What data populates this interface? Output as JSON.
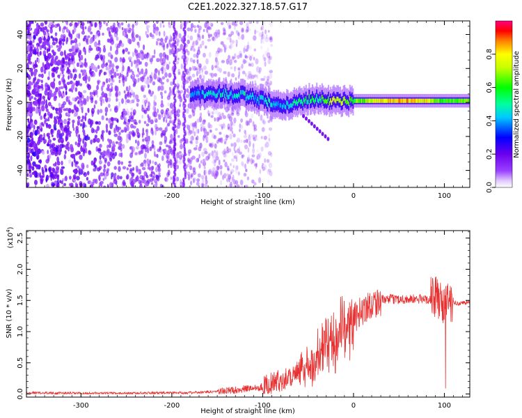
{
  "title": "C2E1.2022.327.18.57.G17",
  "chart_data": [
    {
      "type": "heatmap",
      "xlabel": "Height of straight line (km)",
      "ylabel": "Frequency (Hz)",
      "xlim": [
        -360,
        128
      ],
      "ylim": [
        -50,
        48
      ],
      "xticks": [
        -300,
        -200,
        -100,
        0,
        100
      ],
      "yticks": [
        -40,
        -20,
        0,
        20,
        40
      ],
      "colorbar": {
        "label": "Normalized spectral amplitude",
        "range": [
          0.0,
          1.0
        ],
        "ticks": [
          0.0,
          0.2,
          0.4,
          0.6,
          0.8
        ],
        "tick_labels": [
          "0.0",
          "0.2",
          "0.4",
          "0.6",
          "0.8"
        ],
        "colormap": "rainbow-white"
      },
      "features": {
        "noise_region_x": [
          -360,
          -130
        ],
        "signal_track": [
          {
            "x": -180,
            "y": 5,
            "v": 0.35
          },
          {
            "x": -160,
            "y": 5,
            "v": 0.45
          },
          {
            "x": -140,
            "y": 5,
            "v": 0.45
          },
          {
            "x": -120,
            "y": 4,
            "v": 0.45
          },
          {
            "x": -100,
            "y": 1,
            "v": 0.45
          },
          {
            "x": -80,
            "y": -3,
            "v": 0.4
          },
          {
            "x": -60,
            "y": 1,
            "v": 0.5
          },
          {
            "x": -40,
            "y": 2,
            "v": 0.55
          },
          {
            "x": -20,
            "y": 1,
            "v": 0.75
          },
          {
            "x": 0,
            "y": 1,
            "v": 0.6
          },
          {
            "x": 20,
            "y": 1,
            "v": 0.75
          },
          {
            "x": 40,
            "y": 1,
            "v": 0.8
          },
          {
            "x": 60,
            "y": 1,
            "v": 0.85
          },
          {
            "x": 80,
            "y": 1,
            "v": 0.75
          },
          {
            "x": 100,
            "y": 1,
            "v": 0.6
          },
          {
            "x": 128,
            "y": 1,
            "v": 0.7
          }
        ]
      }
    },
    {
      "type": "line",
      "xlabel": "Height of straight line (km)",
      "ylabel": "SNR (10 * v/v)",
      "y_multiplier": "(x10",
      "y_multiplier_exp": "4",
      "y_multiplier_close": ")",
      "xlim": [
        -360,
        128
      ],
      "ylim": [
        -0.05,
        2.62
      ],
      "xticks": [
        -300,
        -200,
        -100,
        0,
        100
      ],
      "yticks": [
        0.0,
        0.5,
        1.0,
        1.5,
        2.0,
        2.5
      ],
      "ytick_labels": [
        "0.0",
        "0.5",
        "1.0",
        "1.5",
        "2.0",
        "2.5"
      ],
      "series": [
        {
          "color": "#e83030",
          "x": [
            -360,
            -300,
            -250,
            -200,
            -180,
            -160,
            -140,
            -120,
            -100,
            -80,
            -60,
            -40,
            -30,
            -20,
            -10,
            0,
            10,
            20,
            30,
            40,
            60,
            80,
            90,
            100,
            105,
            110,
            128
          ],
          "y": [
            0.02,
            0.01,
            0.01,
            0.02,
            0.02,
            0.03,
            0.05,
            0.08,
            0.12,
            0.22,
            0.35,
            0.55,
            0.75,
            0.9,
            1.05,
            1.2,
            1.35,
            1.45,
            1.5,
            1.52,
            1.52,
            1.52,
            1.55,
            1.45,
            1.5,
            1.45,
            1.47
          ]
        }
      ]
    }
  ]
}
